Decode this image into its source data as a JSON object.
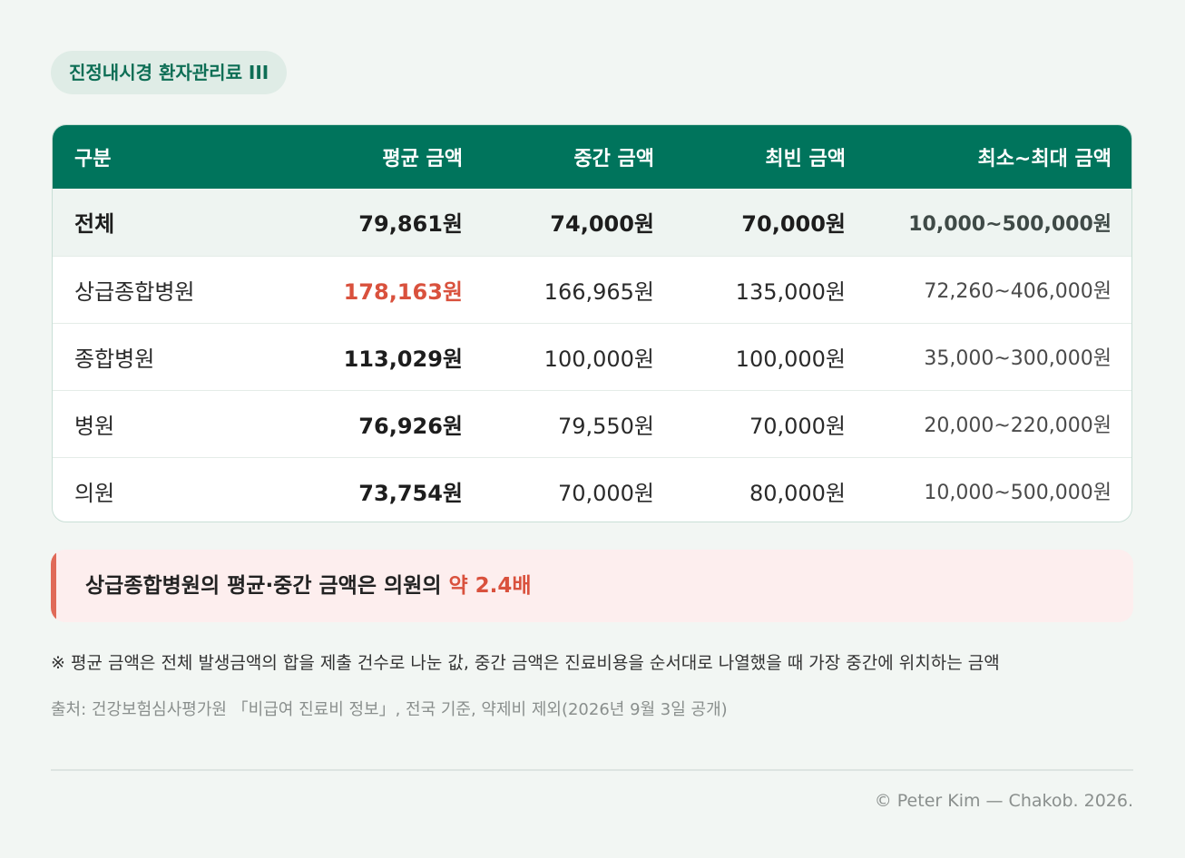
{
  "badge": "진정내시경 환자관리료 III",
  "table": {
    "headers": [
      "구분",
      "평균 금액",
      "중간 금액",
      "최빈 금액",
      "최소~최대 금액"
    ],
    "rows": [
      {
        "label": "전체",
        "avg": "79,861원",
        "median": "74,000원",
        "mode": "70,000원",
        "range": "10,000~500,000원"
      },
      {
        "label": "상급종합병원",
        "avg": "178,163원",
        "median": "166,965원",
        "mode": "135,000원",
        "range": "72,260~406,000원"
      },
      {
        "label": "종합병원",
        "avg": "113,029원",
        "median": "100,000원",
        "mode": "100,000원",
        "range": "35,000~300,000원"
      },
      {
        "label": "병원",
        "avg": "76,926원",
        "median": "79,550원",
        "mode": "70,000원",
        "range": "20,000~220,000원"
      },
      {
        "label": "의원",
        "avg": "73,754원",
        "median": "70,000원",
        "mode": "80,000원",
        "range": "10,000~500,000원"
      }
    ]
  },
  "callout": {
    "text": "상급종합병원의 평균·중간 금액은 의원의 ",
    "emphasis": "약 2.4배"
  },
  "note": "※ 평균 금액은 전체 발생금액의 합을 제출 건수로 나눈 값, 중간 금액은 진료비용을 순서대로 나열했을 때 가장 중간에 위치하는 금액",
  "source": "출처: 건강보험심사평가원 「비급여 진료비 정보」, 전국 기준, 약제비 제외(2026년 9월 3일 공개)",
  "copyright": "© Peter Kim — Chakob. 2026.",
  "colors": {
    "header_bg": "#00745c",
    "highlight": "#d9513d",
    "callout_bar": "#e06a58",
    "badge_text": "#0d6e55"
  }
}
